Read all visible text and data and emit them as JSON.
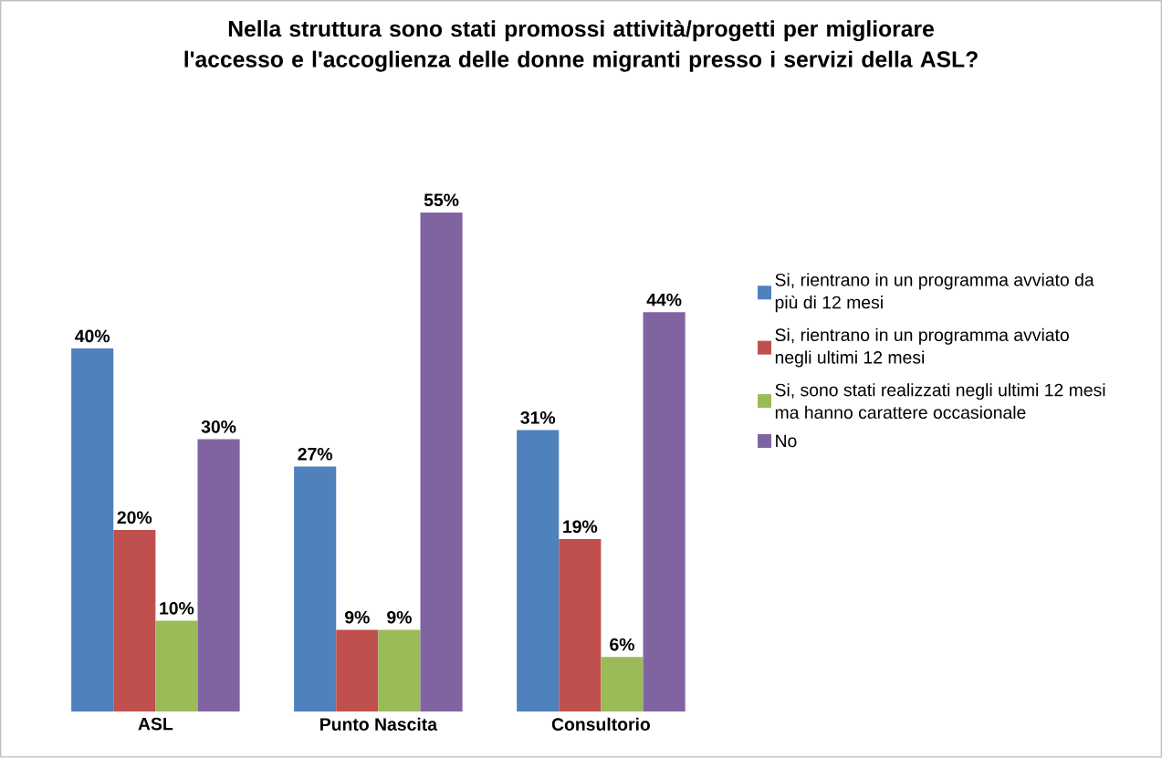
{
  "chart_data": {
    "type": "bar",
    "title": "Nella struttura sono stati promossi attività/progetti per migliorare l'accesso e l'accoglienza delle donne migranti presso i servizi della ASL?",
    "categories": [
      "ASL",
      "Punto Nascita",
      "Consultorio"
    ],
    "series": [
      {
        "name": "Si, rientrano in un programma avviato da più di 12 mesi",
        "color": "#4f81bd",
        "values": [
          40,
          27,
          31
        ],
        "value_labels": [
          "40%",
          "27%",
          "31%"
        ]
      },
      {
        "name": "Si, rientrano in un programma avviato negli ultimi  12 mesi",
        "color": "#c0504d",
        "values": [
          20,
          9,
          19
        ],
        "value_labels": [
          "20%",
          "9%",
          "19%"
        ]
      },
      {
        "name": "Si, sono stati realizzati negli ultimi 12 mesi ma hanno carattere occasionale",
        "color": "#9bbb59",
        "values": [
          10,
          9,
          6
        ],
        "value_labels": [
          "10%",
          "9%",
          "6%"
        ]
      },
      {
        "name": "No",
        "color": "#8064a2",
        "values": [
          30,
          55,
          44
        ],
        "value_labels": [
          "30%",
          "55%",
          "44%"
        ]
      }
    ],
    "legend": "right",
    "grid": false
  }
}
